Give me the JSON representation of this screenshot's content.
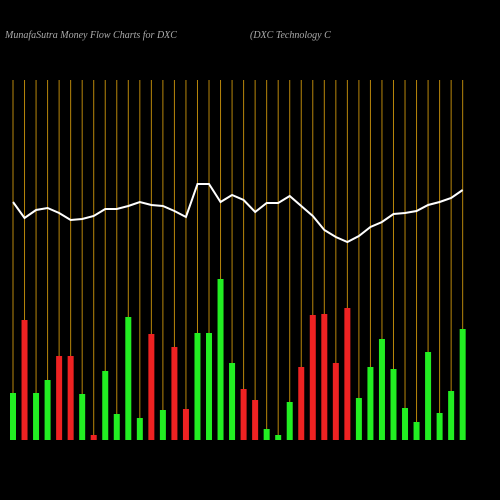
{
  "chart_data": {
    "type": "bar",
    "title": "MunafaSutra  Money Flow  Charts for DXC",
    "subtitle": "(DXC Technology C",
    "background": "#000000",
    "gridline_color": "#b8860b",
    "ylim": [
      0,
      360
    ],
    "bars": {
      "values": [
        47,
        120,
        47,
        60,
        84,
        84,
        46,
        5,
        69,
        26,
        123,
        22,
        106,
        30,
        93,
        31,
        107,
        107,
        161,
        77,
        51,
        40,
        11,
        5,
        38,
        73,
        125,
        126,
        77,
        132,
        42,
        73,
        101,
        71,
        32,
        18,
        88,
        27,
        49,
        111
      ],
      "colors": [
        "#22ee22",
        "#ee2222",
        "#22ee22",
        "#22ee22",
        "#ee2222",
        "#ee2222",
        "#22ee22",
        "#ee2222",
        "#22ee22",
        "#22ee22",
        "#22ee22",
        "#22ee22",
        "#ee2222",
        "#22ee22",
        "#ee2222",
        "#ee2222",
        "#22ee22",
        "#22ee22",
        "#22ee22",
        "#22ee22",
        "#ee2222",
        "#ee2222",
        "#22ee22",
        "#22ee22",
        "#22ee22",
        "#ee2222",
        "#ee2222",
        "#ee2222",
        "#ee2222",
        "#ee2222",
        "#22ee22",
        "#22ee22",
        "#22ee22",
        "#22ee22",
        "#22ee22",
        "#22ee22",
        "#22ee22",
        "#22ee22",
        "#22ee22",
        "#22ee22"
      ]
    },
    "line": {
      "color": "#ffffff",
      "values": [
        238,
        222,
        230,
        232,
        227,
        220,
        221,
        224,
        231,
        231,
        234,
        238,
        235,
        234,
        229,
        223,
        256,
        256,
        238,
        245,
        240,
        228,
        237,
        237,
        244,
        234,
        224,
        210,
        203,
        198,
        204,
        213,
        218,
        226,
        227,
        229,
        235,
        238,
        242,
        250
      ]
    }
  }
}
